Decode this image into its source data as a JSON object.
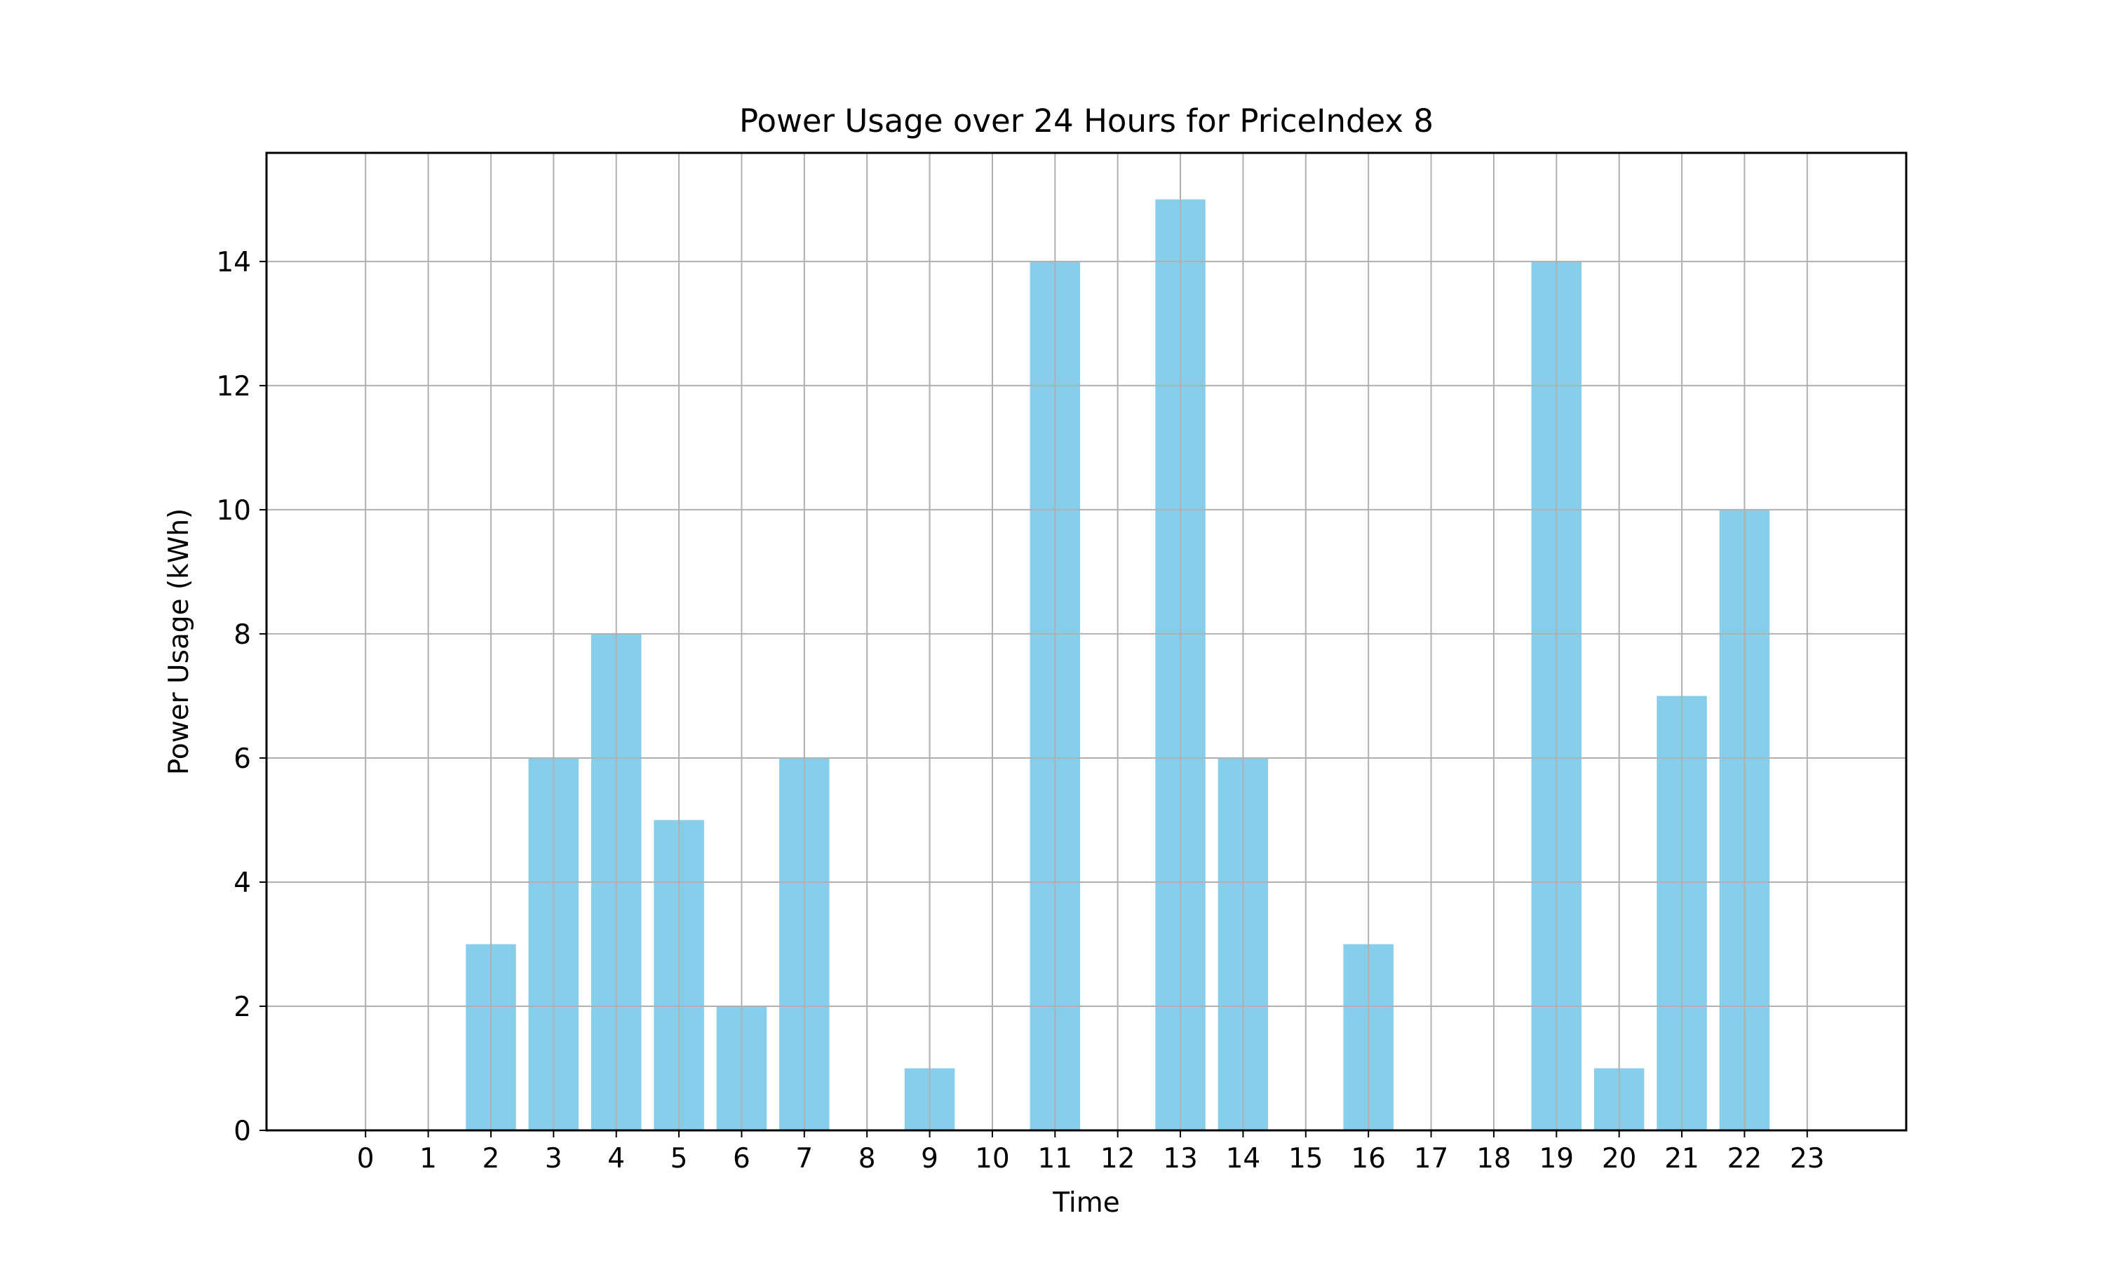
{
  "chart_data": {
    "type": "bar",
    "title": "Power Usage over 24 Hours for PriceIndex 8",
    "xlabel": "Time",
    "ylabel": "Power Usage (kWh)",
    "categories": [
      "0",
      "1",
      "2",
      "3",
      "4",
      "5",
      "6",
      "7",
      "8",
      "9",
      "10",
      "11",
      "12",
      "13",
      "14",
      "15",
      "16",
      "17",
      "18",
      "19",
      "20",
      "21",
      "22",
      "23"
    ],
    "values": [
      0,
      0,
      3,
      6,
      8,
      5,
      2,
      6,
      0,
      1,
      0,
      14,
      0,
      15,
      6,
      0,
      3,
      0,
      0,
      14,
      1,
      7,
      10,
      0
    ],
    "ylim": [
      0,
      15.75
    ],
    "yticks": [
      0,
      2,
      4,
      6,
      8,
      10,
      12,
      14
    ],
    "grid": true,
    "colors": {
      "bar": "#87ceeb",
      "grid": "#b0b0b0",
      "axis": "#000000"
    }
  }
}
